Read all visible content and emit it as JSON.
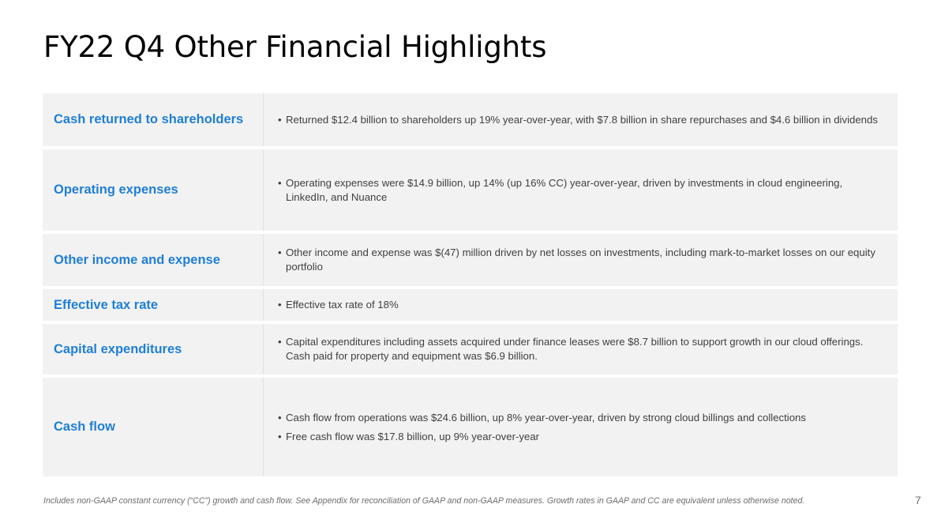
{
  "title": "FY22 Q4 Other Financial Highlights",
  "rows": [
    {
      "label": "Cash returned to shareholders",
      "height": 67,
      "bullets": [
        "Returned $12.4 billion to shareholders up 19% year-over-year, with $7.8 billion in share repurchases and $4.6 billion in dividends"
      ]
    },
    {
      "label": "Operating expenses",
      "height": 103,
      "bullets": [
        "Operating expenses were $14.9 billion, up 14% (up 16% CC) year-over-year, driven by investments in cloud engineering, LinkedIn, and Nuance"
      ]
    },
    {
      "label": "Other income and expense",
      "height": 66,
      "bullets": [
        "Other income and expense was $(47) million driven by net losses on investments, including mark-to-market losses on our equity portfolio"
      ]
    },
    {
      "label": "Effective tax rate",
      "height": 40,
      "bullets": [
        "Effective tax rate of 18%"
      ]
    },
    {
      "label": "Capital expenditures",
      "height": 64,
      "bullets": [
        "Capital expenditures including assets acquired under finance leases were $8.7 billion to support growth in our cloud offerings. Cash paid for property and equipment was $6.9 billion."
      ]
    },
    {
      "label": "Cash flow",
      "height": 125,
      "bullets": [
        "Cash flow from operations was $24.6 billion, up 8% year-over-year, driven by strong cloud billings and collections",
        "Free cash flow was $17.8 billion, up 9% year-over-year"
      ]
    }
  ],
  "bullet_glyph": "•",
  "footer": "Includes non-GAAP constant currency (“CC”) growth and cash flow. See Appendix for reconciliation of GAAP and non-GAAP measures. Growth rates in GAAP and CC are equivalent unless otherwise noted.",
  "page_number": "7",
  "colors": {
    "label": "#1f7fd6",
    "row_bg": "#f2f2f2",
    "body_text": "#404040"
  }
}
